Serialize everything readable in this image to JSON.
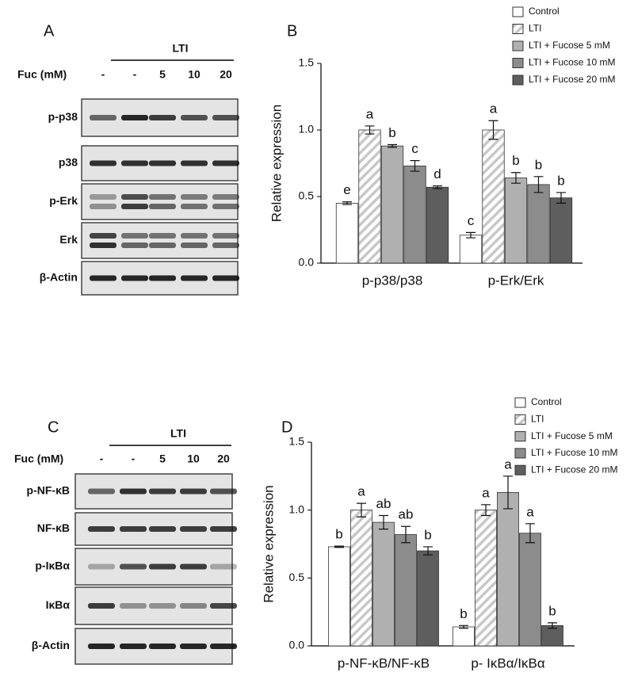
{
  "blot_a": {
    "label": "A",
    "group_label": "LTI",
    "dose_label": "Fuc (mM)",
    "lanes": [
      "-",
      "-",
      "5",
      "10",
      "20"
    ],
    "rows": [
      "p-p38",
      "p38",
      "p-Erk",
      "Erk",
      "β-Actin"
    ]
  },
  "blot_c": {
    "label": "C",
    "group_label": "LTI",
    "dose_label": "Fuc (mM)",
    "lanes": [
      "-",
      "-",
      "5",
      "10",
      "20"
    ],
    "rows": [
      "p-NF-κB",
      "NF-κB",
      "p-IκBα",
      "IκBα",
      "β-Actin"
    ]
  },
  "chart_data": [
    {
      "type": "bar",
      "panel_label": "B",
      "y_label": "Relative expression",
      "categories": [
        "p-p38/p38",
        "p-Erk/Erk"
      ],
      "ylim": [
        0,
        1.5
      ],
      "yticks": [
        {
          "value": 0,
          "label": "0.0"
        },
        0.5,
        {
          "value": 1,
          "label": "1.0"
        },
        1.5
      ],
      "series": [
        {
          "name": "Control",
          "color": "#ffffff",
          "hatch": false,
          "values": [
            0.45,
            0.21
          ],
          "errors": [
            0.01,
            0.02
          ],
          "letters": [
            "e",
            "c"
          ]
        },
        {
          "name": "LTI",
          "color": "#c8c8c8",
          "hatch": true,
          "values": [
            1.0,
            1.0
          ],
          "errors": [
            0.03,
            0.07
          ],
          "letters": [
            "a",
            "a"
          ]
        },
        {
          "name": "LTI + Fucose 5 mM",
          "color": "#b0b0b0",
          "hatch": false,
          "values": [
            0.88,
            0.64
          ],
          "errors": [
            0.01,
            0.04
          ],
          "letters": [
            "b",
            "b"
          ]
        },
        {
          "name": "LTI + Fucose 10 mM",
          "color": "#8c8c8c",
          "hatch": false,
          "values": [
            0.73,
            0.59
          ],
          "errors": [
            0.04,
            0.06
          ],
          "letters": [
            "c",
            "b"
          ]
        },
        {
          "name": "LTI + Fucose 20 mM",
          "color": "#5e5e5e",
          "hatch": false,
          "values": [
            0.57,
            0.49
          ],
          "errors": [
            0.01,
            0.04
          ],
          "letters": [
            "d",
            "b"
          ]
        }
      ]
    },
    {
      "type": "bar",
      "panel_label": "D",
      "y_label": "Relative expression",
      "categories": [
        "p-NF-κB/NF-κB",
        "p- IκBα/IκBα"
      ],
      "ylim": [
        0,
        1.5
      ],
      "yticks": [
        {
          "value": 0,
          "label": "0.0"
        },
        0.5,
        {
          "value": 1,
          "label": "1.0"
        },
        1.5
      ],
      "series": [
        {
          "name": "Control",
          "color": "#ffffff",
          "hatch": false,
          "values": [
            0.73,
            0.14
          ],
          "errors": [
            0.005,
            0.01
          ],
          "letters": [
            "b",
            "b"
          ]
        },
        {
          "name": "LTI",
          "color": "#c8c8c8",
          "hatch": true,
          "values": [
            1.0,
            1.0
          ],
          "errors": [
            0.05,
            0.04
          ],
          "letters": [
            "a",
            "a"
          ]
        },
        {
          "name": "LTI + Fucose 5 mM",
          "color": "#b0b0b0",
          "hatch": false,
          "values": [
            0.91,
            1.13
          ],
          "errors": [
            0.05,
            0.12
          ],
          "letters": [
            "ab",
            "a"
          ]
        },
        {
          "name": "LTI + Fucose 10 mM",
          "color": "#8c8c8c",
          "hatch": false,
          "values": [
            0.82,
            0.83
          ],
          "errors": [
            0.06,
            0.07
          ],
          "letters": [
            "ab",
            "a"
          ]
        },
        {
          "name": "LTI + Fucose 20 mM",
          "color": "#5e5e5e",
          "hatch": false,
          "values": [
            0.7,
            0.15
          ],
          "errors": [
            0.03,
            0.02
          ],
          "letters": [
            "b",
            "b"
          ]
        }
      ]
    }
  ]
}
